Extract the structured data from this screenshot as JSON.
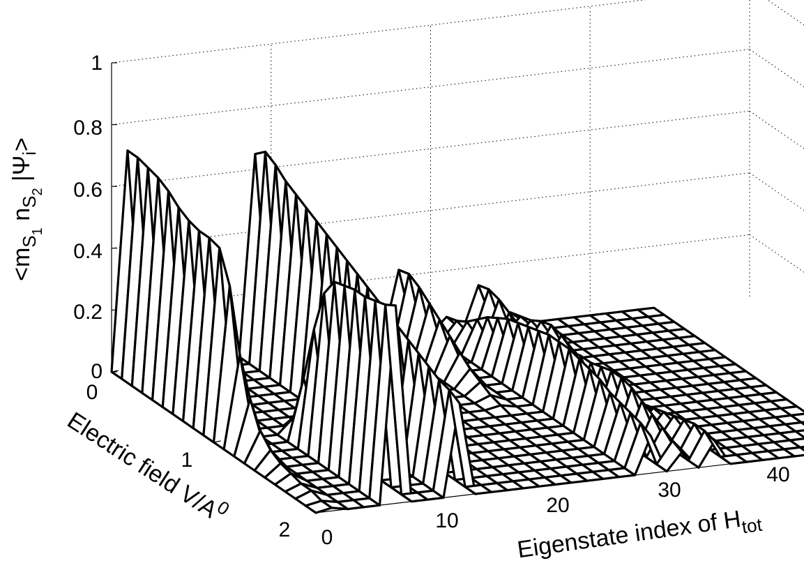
{
  "chart_data": {
    "type": "surface3d",
    "title": "",
    "xlabel": "Eigenstate index of H",
    "xlabel_sub": "tot",
    "ylabel": "Electric field V/A",
    "ylabel_sup": "0",
    "zlabel": "<m",
    "zlabel_full": "<m_{S_1} n_{S_2} |Ψ_i>",
    "xlim": [
      0,
      40
    ],
    "ylim": [
      0,
      2
    ],
    "zlim": [
      0,
      1
    ],
    "x_ticks": [
      "0",
      "10",
      "20",
      "30",
      "40"
    ],
    "y_ticks": [
      "0",
      "1",
      "2"
    ],
    "z_ticks": [
      "0",
      "0.2",
      "0.4",
      "0.6",
      "0.8",
      "1"
    ],
    "x_grid_count": 35,
    "y": [
      0.0,
      0.1,
      0.2,
      0.3,
      0.4,
      0.5,
      0.6,
      0.7,
      0.8,
      0.9,
      1.0,
      1.1,
      1.2,
      1.3,
      1.4,
      1.5,
      1.6,
      1.7,
      1.8,
      1.9,
      2.0
    ],
    "peaks": [
      {
        "index": 1,
        "amplitude": [
          0.71,
          0.71,
          0.7,
          0.69,
          0.67,
          0.64,
          0.62,
          0.61,
          0.61,
          0.6,
          0.5,
          0.3,
          0.18,
          0.1,
          0.06,
          0.04,
          0.03,
          0.02,
          0.02,
          0.01,
          0.01
        ]
      },
      {
        "index": 5,
        "amplitude": [
          0.0,
          0.0,
          0.0,
          0.0,
          0.0,
          0.0,
          0.0,
          0.0,
          0.0,
          0.0,
          0.05,
          0.2,
          0.38,
          0.52,
          0.58,
          0.59,
          0.6,
          0.6,
          0.61,
          0.62,
          0.64
        ]
      },
      {
        "index": 9,
        "amplitude": [
          0.65,
          0.68,
          0.66,
          0.63,
          0.61,
          0.59,
          0.57,
          0.55,
          0.53,
          0.51,
          0.49,
          0.47,
          0.45,
          0.43,
          0.41,
          0.39,
          0.37,
          0.35,
          0.33,
          0.32,
          0.3
        ]
      },
      {
        "index": 18,
        "amplitude": [
          0.22,
          0.23,
          0.21,
          0.18,
          0.15,
          0.12,
          0.09,
          0.06,
          0.04,
          0.02,
          0.01,
          0.0,
          0.0,
          0.0,
          0.0,
          0.0,
          0.0,
          0.0,
          0.0,
          0.0,
          0.0
        ]
      },
      {
        "index": 21,
        "amplitude": [
          0.05,
          0.06,
          0.08,
          0.11,
          0.14,
          0.16,
          0.18,
          0.19,
          0.2,
          0.21,
          0.22,
          0.22,
          0.22,
          0.21,
          0.2,
          0.19,
          0.17,
          0.16,
          0.15,
          0.14,
          0.12
        ]
      },
      {
        "index": 23,
        "amplitude": [
          0.14,
          0.15,
          0.14,
          0.12,
          0.1,
          0.09,
          0.1,
          0.11,
          0.12,
          0.13,
          0.14,
          0.14,
          0.15,
          0.16,
          0.16,
          0.15,
          0.13,
          0.11,
          0.09,
          0.07,
          0.06
        ]
      },
      {
        "index": 25,
        "amplitude": [
          0.04,
          0.05,
          0.06,
          0.08,
          0.09,
          0.08,
          0.06,
          0.04,
          0.03,
          0.02,
          0.02,
          0.02,
          0.03,
          0.04,
          0.05,
          0.06,
          0.07,
          0.08,
          0.09,
          0.09,
          0.08
        ]
      }
    ],
    "grid": true,
    "colors": {
      "face": "#ffffff",
      "edge": "#000000"
    }
  }
}
